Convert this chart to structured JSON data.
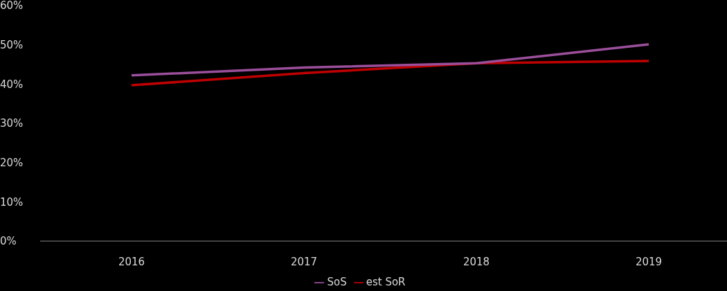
{
  "chart_data": {
    "type": "line",
    "categories": [
      "2016",
      "2017",
      "2018",
      "2019"
    ],
    "series": [
      {
        "name": "est SoR",
        "color": "#c00000",
        "values": [
          39.7,
          42.8,
          45.3,
          45.9
        ]
      },
      {
        "name": "SoS",
        "color": "#9b4f9b",
        "values": [
          42.2,
          44.2,
          45.3,
          50.1
        ]
      }
    ],
    "ylim": [
      0,
      60
    ],
    "yticks": [
      {
        "value": 0,
        "label": "0%"
      },
      {
        "value": 10,
        "label": "10%"
      },
      {
        "value": 20,
        "label": "20%"
      },
      {
        "value": 30,
        "label": "30%"
      },
      {
        "value": 40,
        "label": "40%"
      },
      {
        "value": 50,
        "label": "50%"
      },
      {
        "value": 60,
        "label": "60%"
      }
    ],
    "grid": false,
    "legend": "bottom",
    "marker": "none",
    "line_style": "solid"
  }
}
